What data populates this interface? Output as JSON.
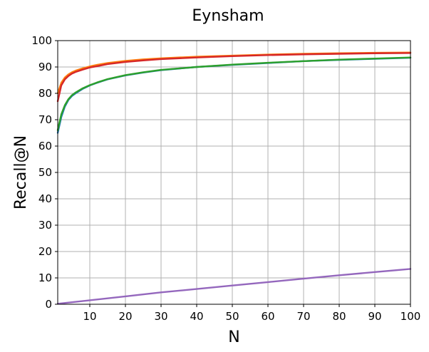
{
  "chart_data": {
    "type": "line",
    "title": "Eynsham",
    "xlabel": "N",
    "ylabel": "Recall@N",
    "xlim": [
      1,
      100
    ],
    "ylim": [
      0,
      100
    ],
    "xticks": [
      10,
      20,
      30,
      40,
      50,
      60,
      70,
      80,
      90,
      100
    ],
    "yticks": [
      0,
      10,
      20,
      30,
      40,
      50,
      60,
      70,
      80,
      90,
      100
    ],
    "grid": true,
    "legend": "none",
    "series": [
      {
        "color": "#1f77b4",
        "x": [
          1,
          2,
          3,
          4,
          5,
          6,
          8,
          10,
          12,
          15,
          20,
          25,
          30,
          40,
          50,
          60,
          70,
          80,
          90,
          100
        ],
        "y": [
          65,
          71,
          75,
          77.5,
          79,
          80,
          81.7,
          83,
          84,
          85.3,
          86.8,
          87.9,
          88.8,
          90,
          90.8,
          91.5,
          92.2,
          92.7,
          93.1,
          93.5
        ]
      },
      {
        "color": "#ff7f0e",
        "x": [
          1,
          2,
          3,
          4,
          5,
          6,
          8,
          10,
          12,
          15,
          20,
          25,
          30,
          40,
          50,
          60,
          70,
          80,
          90,
          100
        ],
        "y": [
          80,
          84,
          86,
          87.2,
          88,
          88.6,
          89.5,
          90.2,
          90.8,
          91.5,
          92.3,
          92.9,
          93.3,
          93.9,
          94.3,
          94.7,
          95,
          95.2,
          95.4,
          95.5
        ]
      },
      {
        "color": "#2ca02c",
        "x": [
          1,
          2,
          3,
          4,
          5,
          6,
          8,
          10,
          12,
          15,
          20,
          25,
          30,
          40,
          50,
          60,
          70,
          80,
          90,
          100
        ],
        "y": [
          66,
          72,
          75.5,
          77.8,
          79.3,
          80.3,
          81.9,
          83.1,
          84.1,
          85.4,
          86.9,
          88,
          88.9,
          90,
          90.9,
          91.6,
          92.2,
          92.8,
          93.2,
          93.6
        ]
      },
      {
        "color": "#d62728",
        "x": [
          1,
          2,
          3,
          4,
          5,
          6,
          8,
          10,
          12,
          15,
          20,
          25,
          30,
          40,
          50,
          60,
          70,
          80,
          90,
          100
        ],
        "y": [
          77,
          83,
          85.3,
          86.6,
          87.5,
          88.1,
          89,
          89.8,
          90.3,
          91.1,
          91.9,
          92.5,
          93,
          93.6,
          94.1,
          94.5,
          94.8,
          95,
          95.2,
          95.3
        ]
      },
      {
        "color": "#9467bd",
        "x": [
          1,
          10,
          20,
          30,
          40,
          50,
          60,
          70,
          80,
          90,
          100
        ],
        "y": [
          0.2,
          1.5,
          3,
          4.5,
          5.8,
          7.1,
          8.4,
          9.7,
          11,
          12.2,
          13.4
        ]
      }
    ]
  }
}
